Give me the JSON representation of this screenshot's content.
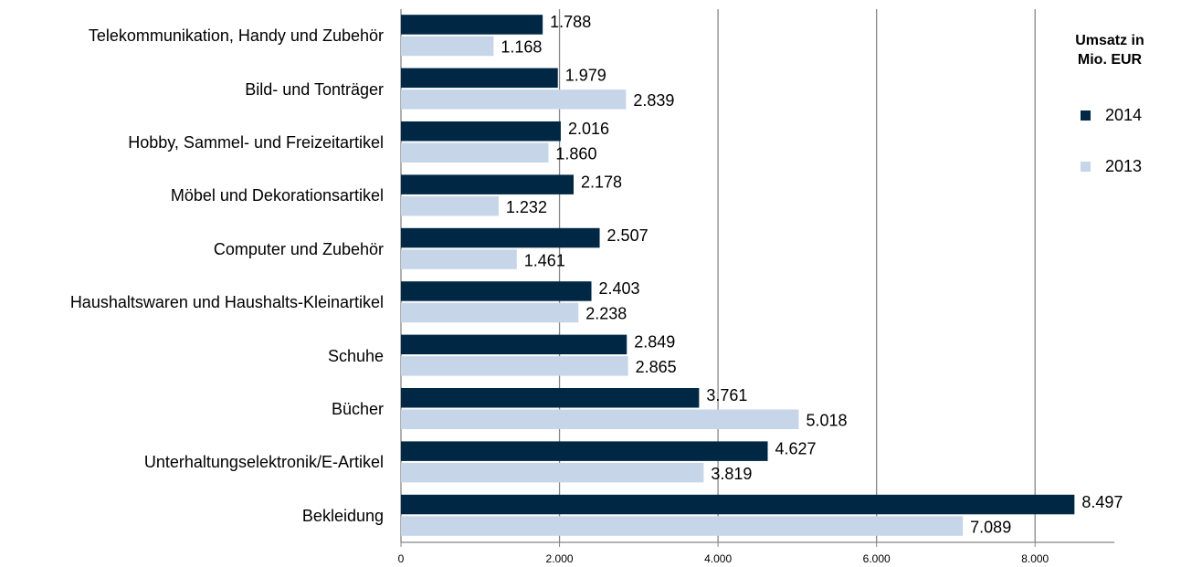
{
  "chart_data": {
    "type": "hbar",
    "legend_title": "Umsatz in Mio. EUR",
    "categories": [
      "Telekommunikation, Handy und Zubehör",
      "Bild- und Tonträger",
      "Hobby, Sammel- und Freizeitartikel",
      "Möbel und Dekorationsartikel",
      "Computer und Zubehör",
      "Haushaltswaren und Haushalts-Kleinartikel",
      "Schuhe",
      "Bücher",
      "Unterhaltungselektronik/E-Artikel",
      "Bekleidung"
    ],
    "series": [
      {
        "name": "2014",
        "color": "#002845",
        "values": [
          1788,
          1979,
          2016,
          2178,
          2507,
          2403,
          2849,
          3761,
          4627,
          8497
        ],
        "value_labels": [
          "1.788",
          "1.979",
          "2.016",
          "2.178",
          "2.507",
          "2.403",
          "2.849",
          "3.761",
          "4.627",
          "8.497"
        ]
      },
      {
        "name": "2013",
        "color": "#c6d5e8",
        "values": [
          1168,
          2839,
          1860,
          1232,
          1461,
          2238,
          2865,
          5018,
          3819,
          7089
        ],
        "value_labels": [
          "1.168",
          "2.839",
          "1.860",
          "1.232",
          "1.461",
          "2.238",
          "2.865",
          "5.018",
          "3.819",
          "7.089"
        ]
      }
    ],
    "xlim": [
      0,
      9000
    ],
    "xticks": [
      0,
      {
        "value": 2000,
        "label": "2.000"
      },
      {
        "value": 4000,
        "label": "4.000"
      },
      {
        "value": 6000,
        "label": "6.000"
      },
      {
        "value": 8000,
        "label": "8.000"
      }
    ],
    "grid": true
  }
}
